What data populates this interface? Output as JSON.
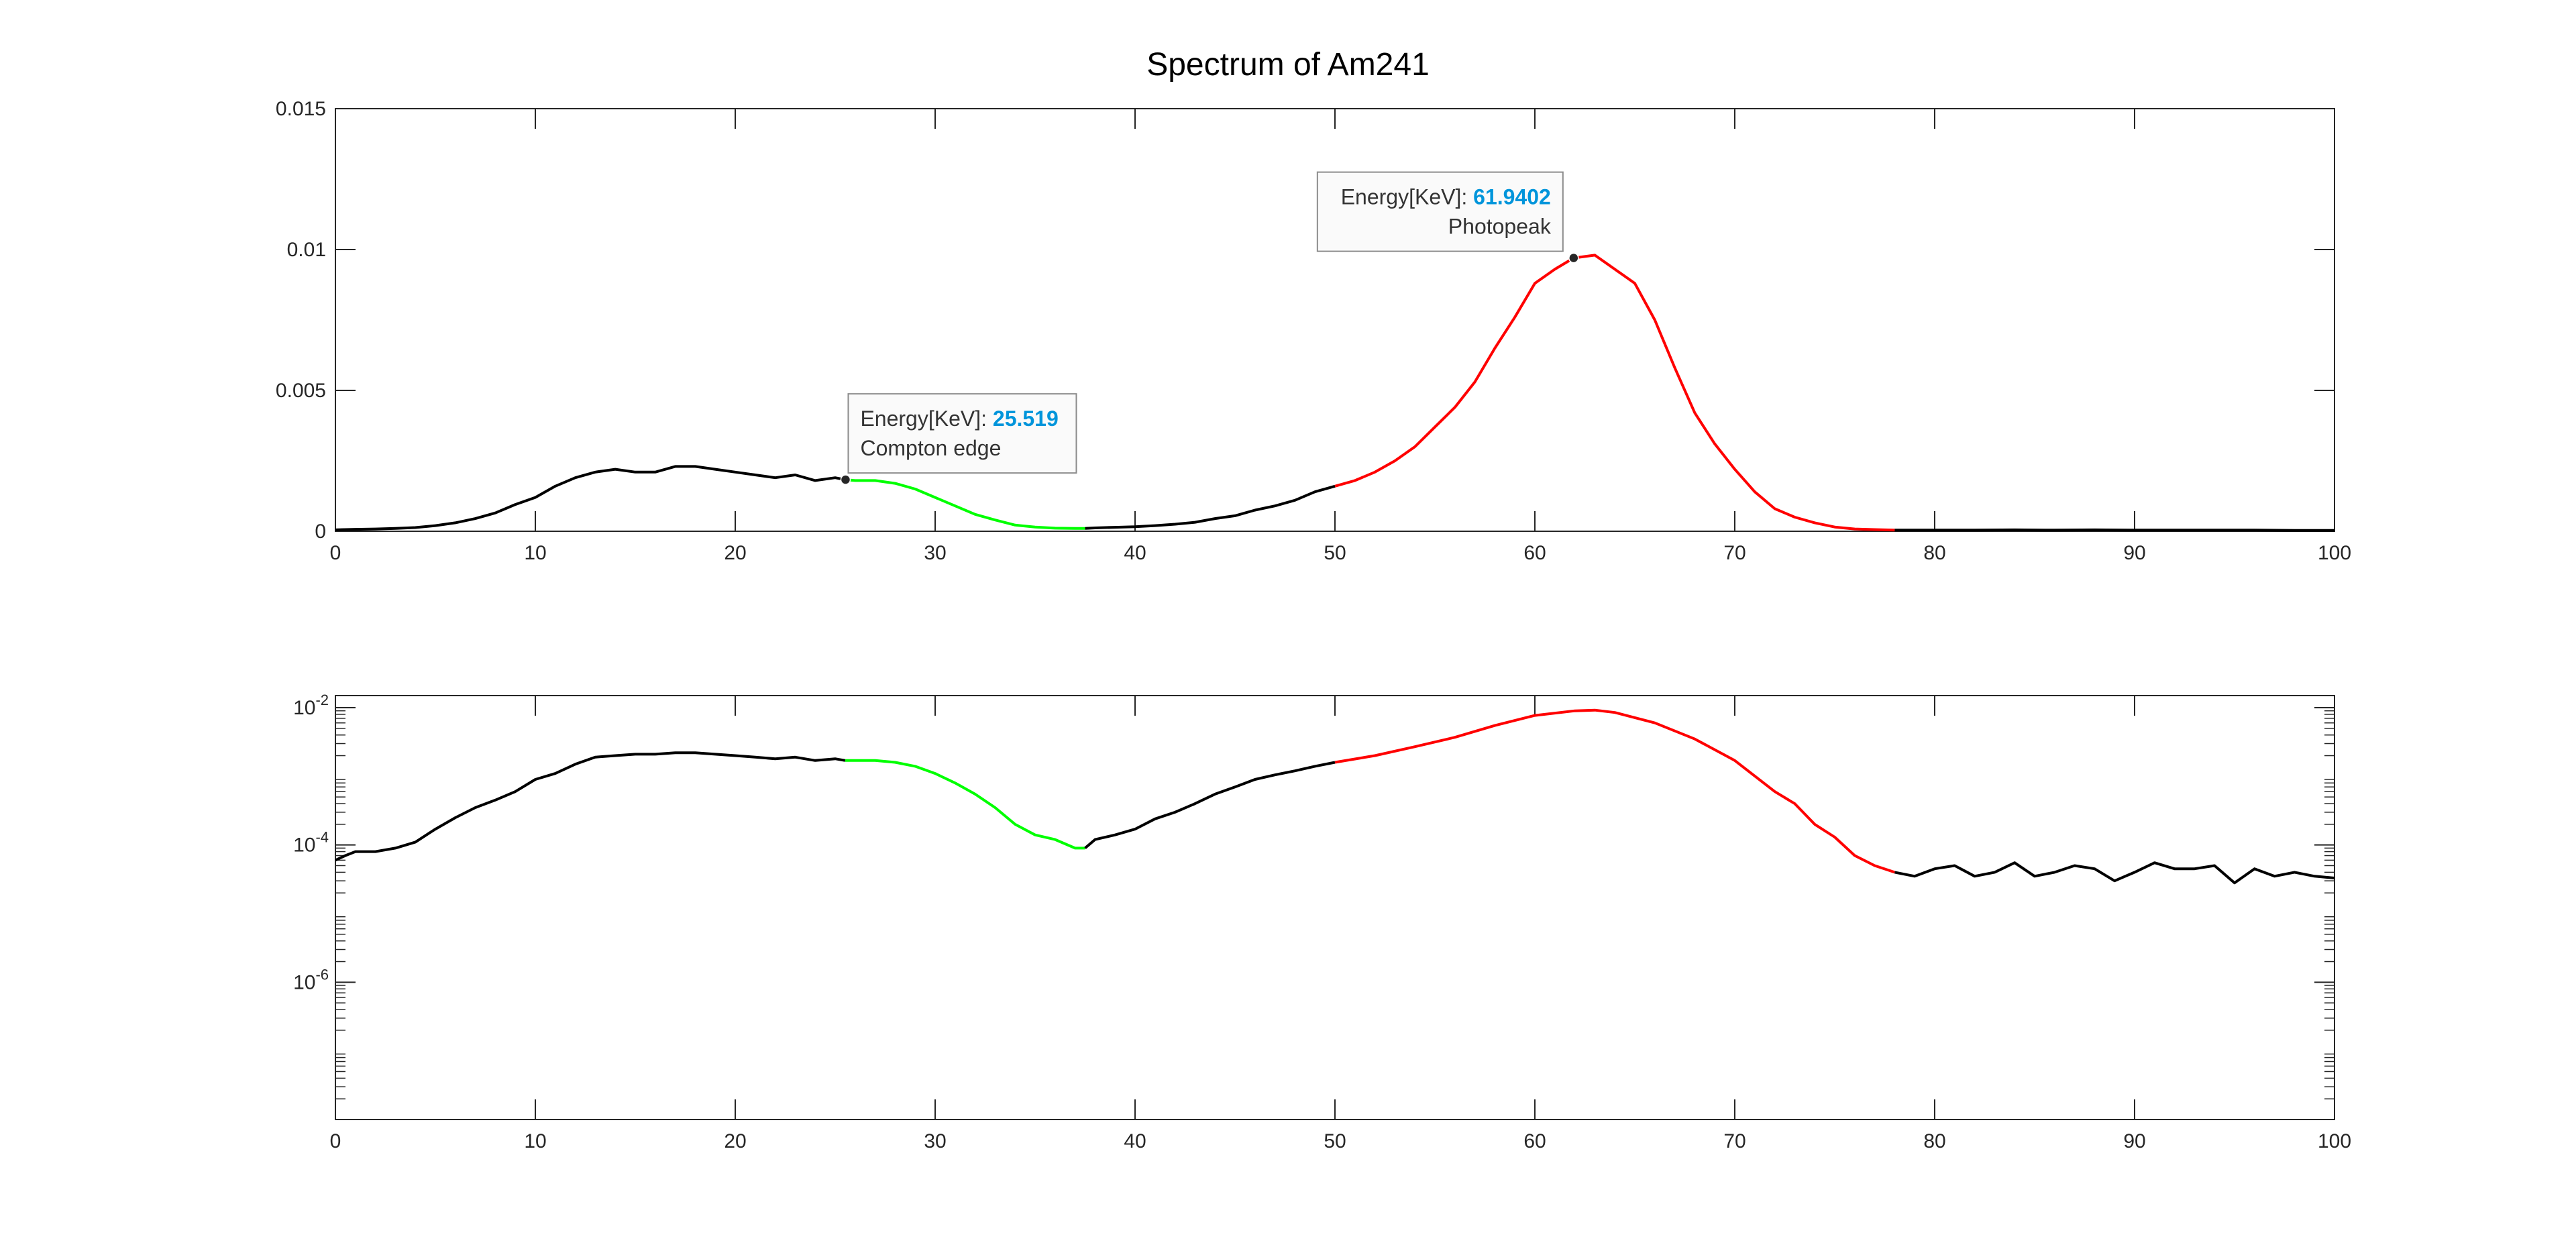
{
  "chart_data": [
    {
      "type": "line",
      "title": "Spectrum of Am241",
      "yscale": "linear",
      "xlim": [
        0,
        100
      ],
      "ylim": [
        0,
        0.015
      ],
      "xticks": [
        0,
        10,
        20,
        30,
        40,
        50,
        60,
        70,
        80,
        90,
        100
      ],
      "xtick_labels": [
        "0",
        "10",
        "20",
        "30",
        "40",
        "50",
        "60",
        "70",
        "80",
        "90",
        "100"
      ],
      "yticks": [
        0,
        0.005,
        0.01,
        0.015
      ],
      "ytick_labels": [
        "0",
        "0.005",
        "0.01",
        "0.015"
      ],
      "grid": false,
      "series": [
        {
          "color": "#000000",
          "x": [
            0,
            1,
            2,
            3,
            4,
            5,
            6,
            7,
            8,
            9,
            10,
            11,
            12,
            13,
            14,
            15,
            16,
            17,
            18,
            19,
            20,
            21,
            22,
            23,
            24,
            25,
            25.5
          ],
          "y": [
            5e-05,
            7e-05,
            8e-05,
            0.0001,
            0.00013,
            0.0002,
            0.0003,
            0.00045,
            0.00065,
            0.00095,
            0.0012,
            0.0016,
            0.0019,
            0.0021,
            0.0022,
            0.0021,
            0.0021,
            0.0023,
            0.0023,
            0.0022,
            0.0021,
            0.002,
            0.0019,
            0.002,
            0.0018,
            0.0019,
            0.00183
          ]
        },
        {
          "color": "#00ff00",
          "x": [
            25.5,
            26,
            27,
            28,
            29,
            30,
            31,
            32,
            33,
            34,
            35,
            36,
            37,
            37.5
          ],
          "y": [
            0.00183,
            0.0018,
            0.0018,
            0.0017,
            0.0015,
            0.0012,
            0.0009,
            0.0006,
            0.0004,
            0.00022,
            0.00015,
            0.00011,
            0.0001,
            0.0001
          ]
        },
        {
          "color": "#000000",
          "x": [
            37.5,
            38,
            39,
            40,
            41,
            42,
            43,
            44,
            45,
            46,
            47,
            48,
            49,
            50
          ],
          "y": [
            0.0001,
            0.00012,
            0.00014,
            0.00016,
            0.0002,
            0.00025,
            0.00032,
            0.00045,
            0.00055,
            0.00075,
            0.0009,
            0.0011,
            0.0014,
            0.0016
          ]
        },
        {
          "color": "#ff0000",
          "x": [
            50,
            51,
            52,
            53,
            54,
            55,
            56,
            57,
            58,
            59,
            60,
            61,
            61.9402,
            63,
            64,
            65,
            66,
            67,
            68,
            69,
            70,
            71,
            72,
            73,
            74,
            75,
            76,
            77,
            78
          ],
          "y": [
            0.0016,
            0.0018,
            0.0021,
            0.0025,
            0.003,
            0.0037,
            0.0044,
            0.0053,
            0.0065,
            0.0076,
            0.0088,
            0.0093,
            0.0097,
            0.0098,
            0.0093,
            0.0088,
            0.0075,
            0.0058,
            0.0042,
            0.0031,
            0.0022,
            0.0014,
            0.0008,
            0.0005,
            0.0003,
            0.00015,
            8e-05,
            6e-05,
            4e-05
          ]
        },
        {
          "color": "#000000",
          "x": [
            78,
            80,
            82,
            84,
            86,
            88,
            90,
            92,
            94,
            96,
            98,
            100
          ],
          "y": [
            4e-05,
            4e-05,
            4e-05,
            5e-05,
            4e-05,
            5e-05,
            4e-05,
            4e-05,
            4e-05,
            4e-05,
            3e-05,
            3e-05
          ]
        }
      ],
      "annotations": [
        {
          "x": 25.519,
          "y": 0.00183,
          "label": "Energy[KeV]: ",
          "value": "25.519",
          "note": "Compton edge",
          "align": "left"
        },
        {
          "x": 61.9402,
          "y": 0.0097,
          "label": "Energy[KeV]: ",
          "value": "61.9402",
          "note": "Photopeak",
          "align": "right"
        }
      ],
      "colors": {
        "value_text": "#0095db",
        "tip_border": "#8c8c8c",
        "tip_fill": "#fafafa"
      }
    },
    {
      "type": "line",
      "title": "",
      "yscale": "log",
      "xlim": [
        0,
        100
      ],
      "ylim": [
        1e-08,
        0.015
      ],
      "xticks": [
        0,
        10,
        20,
        30,
        40,
        50,
        60,
        70,
        80,
        90,
        100
      ],
      "xtick_labels": [
        "0",
        "10",
        "20",
        "30",
        "40",
        "50",
        "60",
        "70",
        "80",
        "90",
        "100"
      ],
      "yticks": [
        1e-06,
        0.0001,
        0.01
      ],
      "ytick_labels": [
        "10",
        "10",
        "10"
      ],
      "ytick_exponents": [
        "-6",
        "-4",
        "-2"
      ],
      "grid": false,
      "series": [
        {
          "color": "#000000",
          "x": [
            0,
            0.5,
            1,
            2,
            3,
            4,
            5,
            6,
            7,
            8,
            9,
            10,
            11,
            12,
            13,
            14,
            15,
            16,
            17,
            18,
            19,
            20,
            21,
            22,
            23,
            24,
            25,
            25.5
          ],
          "y": [
            6e-05,
            7e-05,
            8e-05,
            8e-05,
            9e-05,
            0.00011,
            0.00017,
            0.00025,
            0.00035,
            0.00045,
            0.0006,
            0.0009,
            0.0011,
            0.0015,
            0.0019,
            0.002,
            0.0021,
            0.0021,
            0.0022,
            0.0022,
            0.0021,
            0.002,
            0.0019,
            0.0018,
            0.0019,
            0.0017,
            0.0018,
            0.0017
          ]
        },
        {
          "color": "#00ff00",
          "x": [
            25.5,
            26,
            27,
            28,
            29,
            30,
            31,
            32,
            33,
            34,
            35,
            36,
            37,
            37.5
          ],
          "y": [
            0.0017,
            0.0017,
            0.0017,
            0.0016,
            0.0014,
            0.0011,
            0.0008,
            0.00055,
            0.00035,
            0.0002,
            0.00014,
            0.00012,
            9e-05,
            9e-05
          ]
        },
        {
          "color": "#000000",
          "x": [
            37.5,
            38,
            39,
            40,
            41,
            42,
            43,
            44,
            45,
            46,
            47,
            48,
            49,
            50
          ],
          "y": [
            9e-05,
            0.00012,
            0.00014,
            0.00017,
            0.00024,
            0.0003,
            0.0004,
            0.00055,
            0.0007,
            0.0009,
            0.00105,
            0.0012,
            0.0014,
            0.0016
          ]
        },
        {
          "color": "#ff0000",
          "x": [
            50,
            52,
            54,
            56,
            58,
            60,
            62,
            63,
            64,
            66,
            68,
            70,
            72,
            73,
            74,
            75,
            76,
            77,
            78
          ],
          "y": [
            0.0016,
            0.002,
            0.0027,
            0.0037,
            0.0055,
            0.0077,
            0.009,
            0.0092,
            0.0085,
            0.006,
            0.0035,
            0.0017,
            0.0006,
            0.0004,
            0.0002,
            0.00013,
            7e-05,
            5e-05,
            4e-05
          ]
        },
        {
          "color": "#000000",
          "x": [
            78,
            79,
            80,
            81,
            82,
            83,
            84,
            85,
            86,
            87,
            88,
            89,
            90,
            91,
            92,
            93,
            94,
            95,
            96,
            97,
            98,
            99,
            100
          ],
          "y": [
            4e-05,
            3.5e-05,
            4.5e-05,
            5e-05,
            3.5e-05,
            4e-05,
            5.5e-05,
            3.5e-05,
            4e-05,
            5e-05,
            4.5e-05,
            3e-05,
            4e-05,
            5.5e-05,
            4.5e-05,
            4.5e-05,
            5e-05,
            2.8e-05,
            4.5e-05,
            3.5e-05,
            4e-05,
            3.5e-05,
            3.3e-05
          ]
        }
      ]
    }
  ]
}
